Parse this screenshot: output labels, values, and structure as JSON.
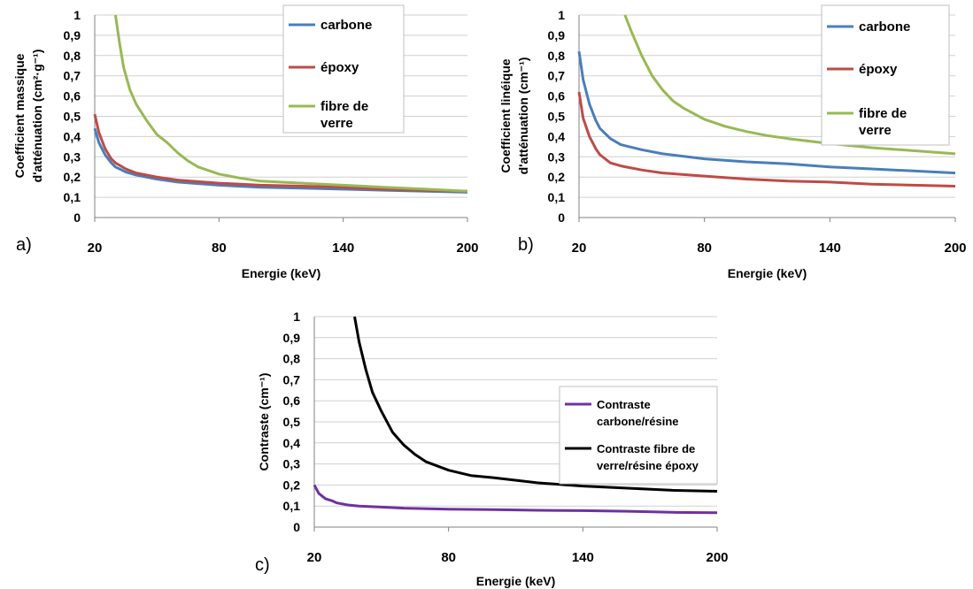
{
  "chart_data": [
    {
      "type": "line",
      "panel_label": "a)",
      "xlabel": "Energie (keV)",
      "ylabel_line1": "Coefficient massique",
      "ylabel_line2": "d'atténuation (cm²·g⁻¹)",
      "xlim": [
        20,
        200
      ],
      "ylim": [
        0,
        1
      ],
      "xticks": [
        "20",
        "80",
        "140",
        "200"
      ],
      "yticks": [
        "0",
        "0,1",
        "0,2",
        "0,3",
        "0,4",
        "0,5",
        "0,6",
        "0,7",
        "0,8",
        "0,9",
        "1"
      ],
      "grid": "horizontal",
      "legend_position": "top-right",
      "series": [
        {
          "name": "carbone",
          "color": "#4a7ebb",
          "x": [
            20,
            22,
            25,
            28,
            30,
            35,
            40,
            50,
            60,
            80,
            100,
            120,
            140,
            160,
            180,
            200
          ],
          "y": [
            0.44,
            0.37,
            0.31,
            0.27,
            0.25,
            0.225,
            0.21,
            0.19,
            0.175,
            0.16,
            0.15,
            0.145,
            0.14,
            0.135,
            0.13,
            0.125
          ]
        },
        {
          "name": "époxy",
          "color": "#be4b48",
          "x": [
            20,
            22,
            25,
            28,
            30,
            35,
            40,
            50,
            60,
            80,
            100,
            120,
            140,
            160,
            180,
            200
          ],
          "y": [
            0.51,
            0.42,
            0.34,
            0.29,
            0.27,
            0.24,
            0.22,
            0.2,
            0.185,
            0.17,
            0.16,
            0.155,
            0.15,
            0.14,
            0.135,
            0.13
          ]
        },
        {
          "name": "fibre de verre",
          "color": "#98b954",
          "x": [
            30,
            32,
            34,
            37,
            40,
            45,
            50,
            55,
            60,
            65,
            70,
            80,
            90,
            100,
            120,
            140,
            160,
            180,
            200
          ],
          "y": [
            1.0,
            0.86,
            0.74,
            0.63,
            0.56,
            0.48,
            0.41,
            0.37,
            0.32,
            0.28,
            0.25,
            0.215,
            0.195,
            0.18,
            0.17,
            0.16,
            0.15,
            0.14,
            0.13
          ]
        }
      ]
    },
    {
      "type": "line",
      "panel_label": "b)",
      "xlabel": "Energie (keV)",
      "ylabel_line1": "Coefficient linéique",
      "ylabel_line2": "d'atténuation (cm⁻¹)",
      "xlim": [
        20,
        200
      ],
      "ylim": [
        0,
        1
      ],
      "xticks": [
        "20",
        "80",
        "140",
        "200"
      ],
      "yticks": [
        "0",
        "0,1",
        "0,2",
        "0,3",
        "0,4",
        "0,5",
        "0,6",
        "0,7",
        "0,8",
        "0,9",
        "1"
      ],
      "grid": "horizontal",
      "legend_position": "top-right",
      "series": [
        {
          "name": "carbone",
          "color": "#4a7ebb",
          "x": [
            20,
            22,
            25,
            28,
            30,
            35,
            40,
            50,
            60,
            80,
            100,
            120,
            140,
            160,
            180,
            200
          ],
          "y": [
            0.82,
            0.68,
            0.56,
            0.48,
            0.44,
            0.39,
            0.36,
            0.335,
            0.315,
            0.29,
            0.275,
            0.265,
            0.25,
            0.24,
            0.23,
            0.22
          ]
        },
        {
          "name": "époxy",
          "color": "#be4b48",
          "x": [
            20,
            22,
            25,
            28,
            30,
            35,
            40,
            50,
            60,
            80,
            100,
            120,
            140,
            160,
            180,
            200
          ],
          "y": [
            0.62,
            0.49,
            0.4,
            0.34,
            0.31,
            0.27,
            0.255,
            0.235,
            0.22,
            0.205,
            0.19,
            0.18,
            0.175,
            0.165,
            0.16,
            0.155
          ]
        },
        {
          "name": "fibre de verre",
          "color": "#98b954",
          "x": [
            42,
            45,
            50,
            55,
            60,
            65,
            70,
            80,
            90,
            100,
            110,
            120,
            140,
            160,
            180,
            200
          ],
          "y": [
            1.0,
            0.92,
            0.8,
            0.7,
            0.63,
            0.575,
            0.54,
            0.485,
            0.45,
            0.425,
            0.405,
            0.39,
            0.365,
            0.345,
            0.33,
            0.315
          ]
        }
      ]
    },
    {
      "type": "line",
      "panel_label": "c)",
      "xlabel": "Energie (keV)",
      "ylabel": "Contraste (cm⁻¹)",
      "xlim": [
        20,
        200
      ],
      "ylim": [
        0,
        1
      ],
      "xticks": [
        "20",
        "80",
        "140",
        "200"
      ],
      "yticks": [
        "0",
        "0,1",
        "0,2",
        "0,3",
        "0,4",
        "0,5",
        "0,6",
        "0,7",
        "0,8",
        "0,9",
        "1"
      ],
      "grid": "horizontal",
      "legend_position": "right",
      "series": [
        {
          "name": "Contraste carbone/résine",
          "color": "#7030a0",
          "x": [
            20,
            22,
            25,
            28,
            30,
            35,
            40,
            50,
            60,
            80,
            100,
            120,
            140,
            160,
            180,
            200
          ],
          "y": [
            0.2,
            0.16,
            0.135,
            0.125,
            0.115,
            0.105,
            0.1,
            0.095,
            0.09,
            0.085,
            0.083,
            0.08,
            0.078,
            0.075,
            0.07,
            0.068
          ]
        },
        {
          "name": "Contraste fibre de verre/résine époxy",
          "color": "#000000",
          "x": [
            38,
            40,
            43,
            46,
            50,
            55,
            60,
            65,
            70,
            80,
            90,
            100,
            120,
            140,
            160,
            180,
            200
          ],
          "y": [
            1.0,
            0.88,
            0.75,
            0.64,
            0.55,
            0.45,
            0.39,
            0.345,
            0.31,
            0.27,
            0.245,
            0.235,
            0.21,
            0.195,
            0.185,
            0.175,
            0.17
          ]
        }
      ]
    }
  ]
}
